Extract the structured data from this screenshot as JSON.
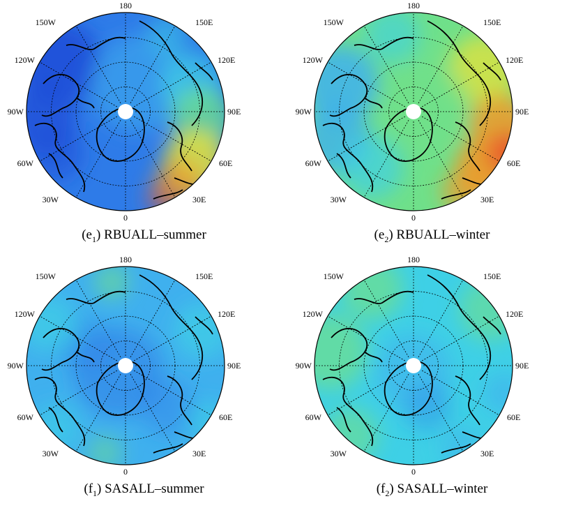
{
  "longitude_labels": {
    "top": "180",
    "upper_left": "150W",
    "upper_right": "150E",
    "left_high": "120W",
    "right_high": "120E",
    "left": "90W",
    "right": "90E",
    "left_low": "60W",
    "right_low": "60E",
    "lower_left": "30W",
    "lower_right": "30E",
    "bottom": "0"
  },
  "panels": [
    {
      "letter": "e",
      "sub": "1",
      "title": "RBUALL–summer",
      "scheme": "e_summer"
    },
    {
      "letter": "e",
      "sub": "2",
      "title": "RBUALL–winter",
      "scheme": "e_winter"
    },
    {
      "letter": "f",
      "sub": "1",
      "title": "SASALL–summer",
      "scheme": "f_summer"
    },
    {
      "letter": "f",
      "sub": "2",
      "title": "SASALL–winter",
      "scheme": "f_winter"
    }
  ],
  "colors": {
    "deep_blue": "#1f4fd8",
    "blue": "#2e7be8",
    "light_blue": "#3fb0ee",
    "cyan": "#3ed0e6",
    "green": "#6fe08a",
    "yellow": "#e6e23a",
    "orange": "#f19a2a",
    "red": "#e8502a",
    "coast": "#000000"
  }
}
